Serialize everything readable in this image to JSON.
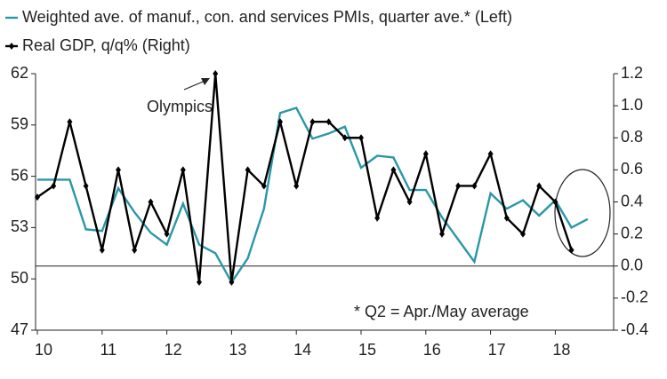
{
  "chart_data": {
    "type": "line",
    "legend": [
      "Weighted ave. of manuf., con. and services PMIs, quarter ave.* (Left)",
      "Real GDP, q/q% (Right)"
    ],
    "categories": [
      "10",
      null,
      null,
      null,
      "11",
      null,
      null,
      null,
      "12",
      null,
      null,
      null,
      "13",
      null,
      null,
      null,
      "14",
      null,
      null,
      null,
      "15",
      null,
      null,
      null,
      "16",
      null,
      null,
      null,
      "17",
      null,
      null,
      null,
      "18",
      null,
      null
    ],
    "series": [
      {
        "name": "Weighted ave. of manuf., con. and services PMIs, quarter ave.* (Left)",
        "color": "#2a97a7",
        "axis": "y",
        "values": [
          55.8,
          55.8,
          55.8,
          52.9,
          52.8,
          55.3,
          53.9,
          52.7,
          52.0,
          54.4,
          52.0,
          51.5,
          49.8,
          51.2,
          54.1,
          59.7,
          60.0,
          58.2,
          58.5,
          58.9,
          56.5,
          57.2,
          57.1,
          55.2,
          55.2,
          53.6,
          52.3,
          51.0,
          55.0,
          54.1,
          54.6,
          53.7,
          54.6,
          53.0,
          53.5
        ]
      },
      {
        "name": "Real GDP, q/q% (Right)",
        "color": "#000000",
        "axis": "y2",
        "markers": true,
        "values": [
          0.43,
          0.5,
          0.9,
          0.5,
          0.1,
          0.6,
          0.1,
          0.4,
          0.2,
          0.6,
          -0.1,
          1.2,
          -0.1,
          0.6,
          0.5,
          0.9,
          0.5,
          0.9,
          0.9,
          0.8,
          0.8,
          0.3,
          0.6,
          0.4,
          0.7,
          0.2,
          0.5,
          0.5,
          0.7,
          0.3,
          0.2,
          0.5,
          0.4,
          0.1,
          null
        ]
      }
    ],
    "ylim": [
      47,
      62
    ],
    "yticks": [
      47,
      50,
      53,
      56,
      59,
      62
    ],
    "y2lim": [
      -0.4,
      1.2
    ],
    "y2ticks": [
      -0.4,
      -0.2,
      {
        "value": 0,
        "label": "0.0"
      },
      0.2,
      0.4,
      0.6,
      0.8,
      {
        "value": 1,
        "label": "1.0"
      },
      1.2
    ],
    "annotations": [
      "Olympics",
      "* Q2 = Apr./May average"
    ]
  }
}
